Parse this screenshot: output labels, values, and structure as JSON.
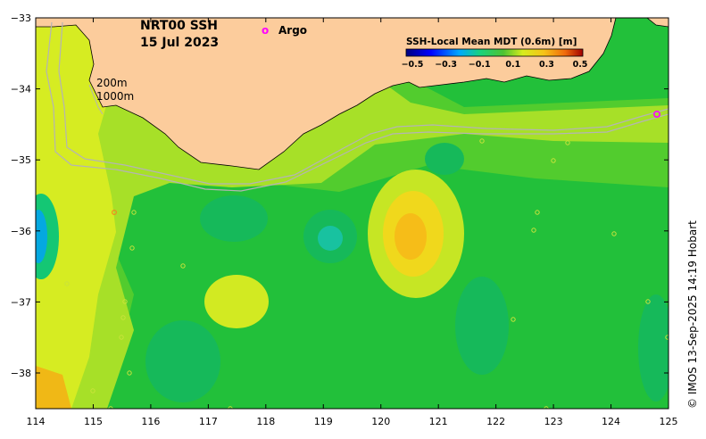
{
  "title": {
    "line1": "NRT00 SSH",
    "line2": "15 Jul 2023"
  },
  "legend": {
    "marker": "o",
    "label": "Argo",
    "color": "#ff00ff"
  },
  "contour_labels": {
    "shallow": "200m",
    "deep": "1000m"
  },
  "colorbar": {
    "title": "SSH-Local Mean MDT (0.6m) [m]",
    "ticks": [
      "−0.5",
      "−0.3",
      "−0.1",
      "0.1",
      "0.3",
      "0.5"
    ]
  },
  "axes": {
    "x_ticks": [
      "114",
      "115",
      "116",
      "117",
      "118",
      "119",
      "120",
      "121",
      "122",
      "123",
      "124",
      "125"
    ],
    "y_ticks": [
      "−33",
      "−34",
      "−35",
      "−36",
      "−37",
      "−38"
    ]
  },
  "credit": "© IMOS 13-Sep-2025 14:19 Hobart",
  "colors": {
    "land": "#fccc9c",
    "ocean_base": "#22c03a",
    "argo": "#ff00ff",
    "contour": "#b4b4b4"
  }
}
